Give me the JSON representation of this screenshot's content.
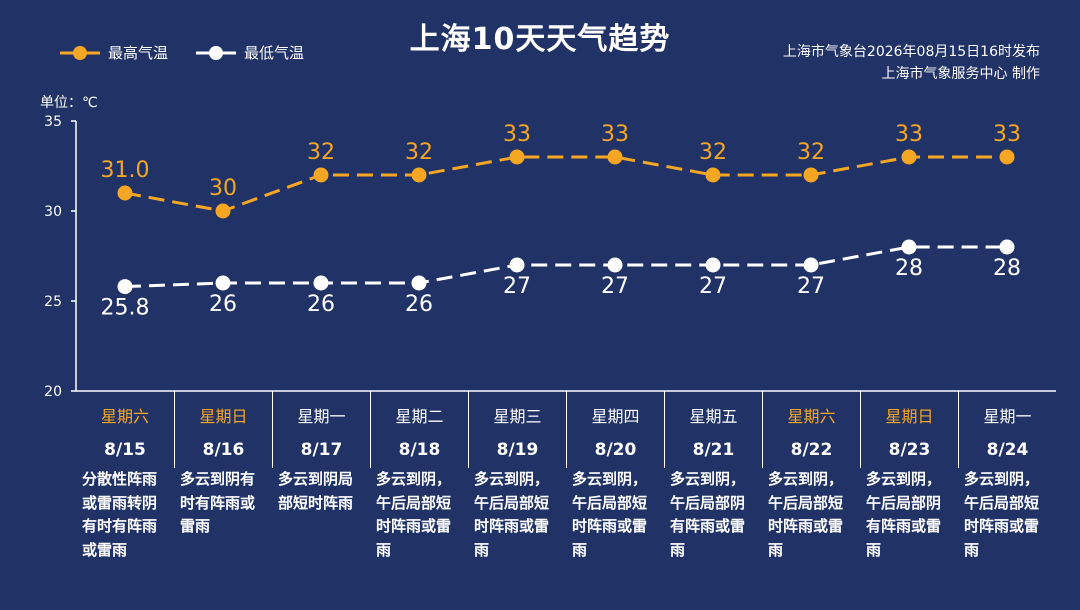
{
  "title": "上海10天天气趋势",
  "legend": {
    "high_label": "最高气温",
    "low_label": "最低气温"
  },
  "source": {
    "line1": "上海市气象台2026年08月15日16时发布",
    "line2": "上海市气象服务中心  制作"
  },
  "unit_label": "单位：℃",
  "colors": {
    "background": "#213266",
    "high": "#f5a623",
    "low": "#ffffff",
    "weekend": "#f5a623"
  },
  "chart_data": {
    "type": "line",
    "categories": [
      "8/15",
      "8/16",
      "8/17",
      "8/18",
      "8/19",
      "8/20",
      "8/21",
      "8/22",
      "8/23",
      "8/24"
    ],
    "series": [
      {
        "name": "最高气温",
        "values": [
          31.0,
          30,
          32,
          32,
          33,
          33,
          32,
          32,
          33,
          33
        ],
        "labels": [
          "31.0",
          "30",
          "32",
          "32",
          "33",
          "33",
          "32",
          "32",
          "33",
          "33"
        ]
      },
      {
        "name": "最低气温",
        "values": [
          25.8,
          26,
          26,
          26,
          27,
          27,
          27,
          27,
          28,
          28
        ],
        "labels": [
          "25.8",
          "26",
          "26",
          "26",
          "27",
          "27",
          "27",
          "27",
          "28",
          "28"
        ]
      }
    ],
    "ylim": [
      20,
      35
    ],
    "yticks": [
      "20",
      "25",
      "30",
      "35"
    ],
    "grid": false,
    "legend_position": "top-left"
  },
  "days": [
    {
      "weekday": "星期六",
      "date": "8/15",
      "weekend": true,
      "desc": "分散性阵雨或雷雨转阴有时有阵雨或雷雨"
    },
    {
      "weekday": "星期日",
      "date": "8/16",
      "weekend": true,
      "desc": "多云到阴有时有阵雨或雷雨"
    },
    {
      "weekday": "星期一",
      "date": "8/17",
      "weekend": false,
      "desc": "多云到阴局部短时阵雨"
    },
    {
      "weekday": "星期二",
      "date": "8/18",
      "weekend": false,
      "desc": "多云到阴，午后局部短时阵雨或雷雨"
    },
    {
      "weekday": "星期三",
      "date": "8/19",
      "weekend": false,
      "desc": "多云到阴，午后局部短时阵雨或雷雨"
    },
    {
      "weekday": "星期四",
      "date": "8/20",
      "weekend": false,
      "desc": "多云到阴，午后局部短时阵雨或雷雨"
    },
    {
      "weekday": "星期五",
      "date": "8/21",
      "weekend": false,
      "desc": "多云到阴，午后局部阴有阵雨或雷雨"
    },
    {
      "weekday": "星期六",
      "date": "8/22",
      "weekend": true,
      "desc": "多云到阴，午后局部短时阵雨或雷雨"
    },
    {
      "weekday": "星期日",
      "date": "8/23",
      "weekend": true,
      "desc": "多云到阴，午后局部阴有阵雨或雷雨"
    },
    {
      "weekday": "星期一",
      "date": "8/24",
      "weekend": false,
      "desc": "多云到阴，午后局部短时阵雨或雷雨"
    }
  ]
}
